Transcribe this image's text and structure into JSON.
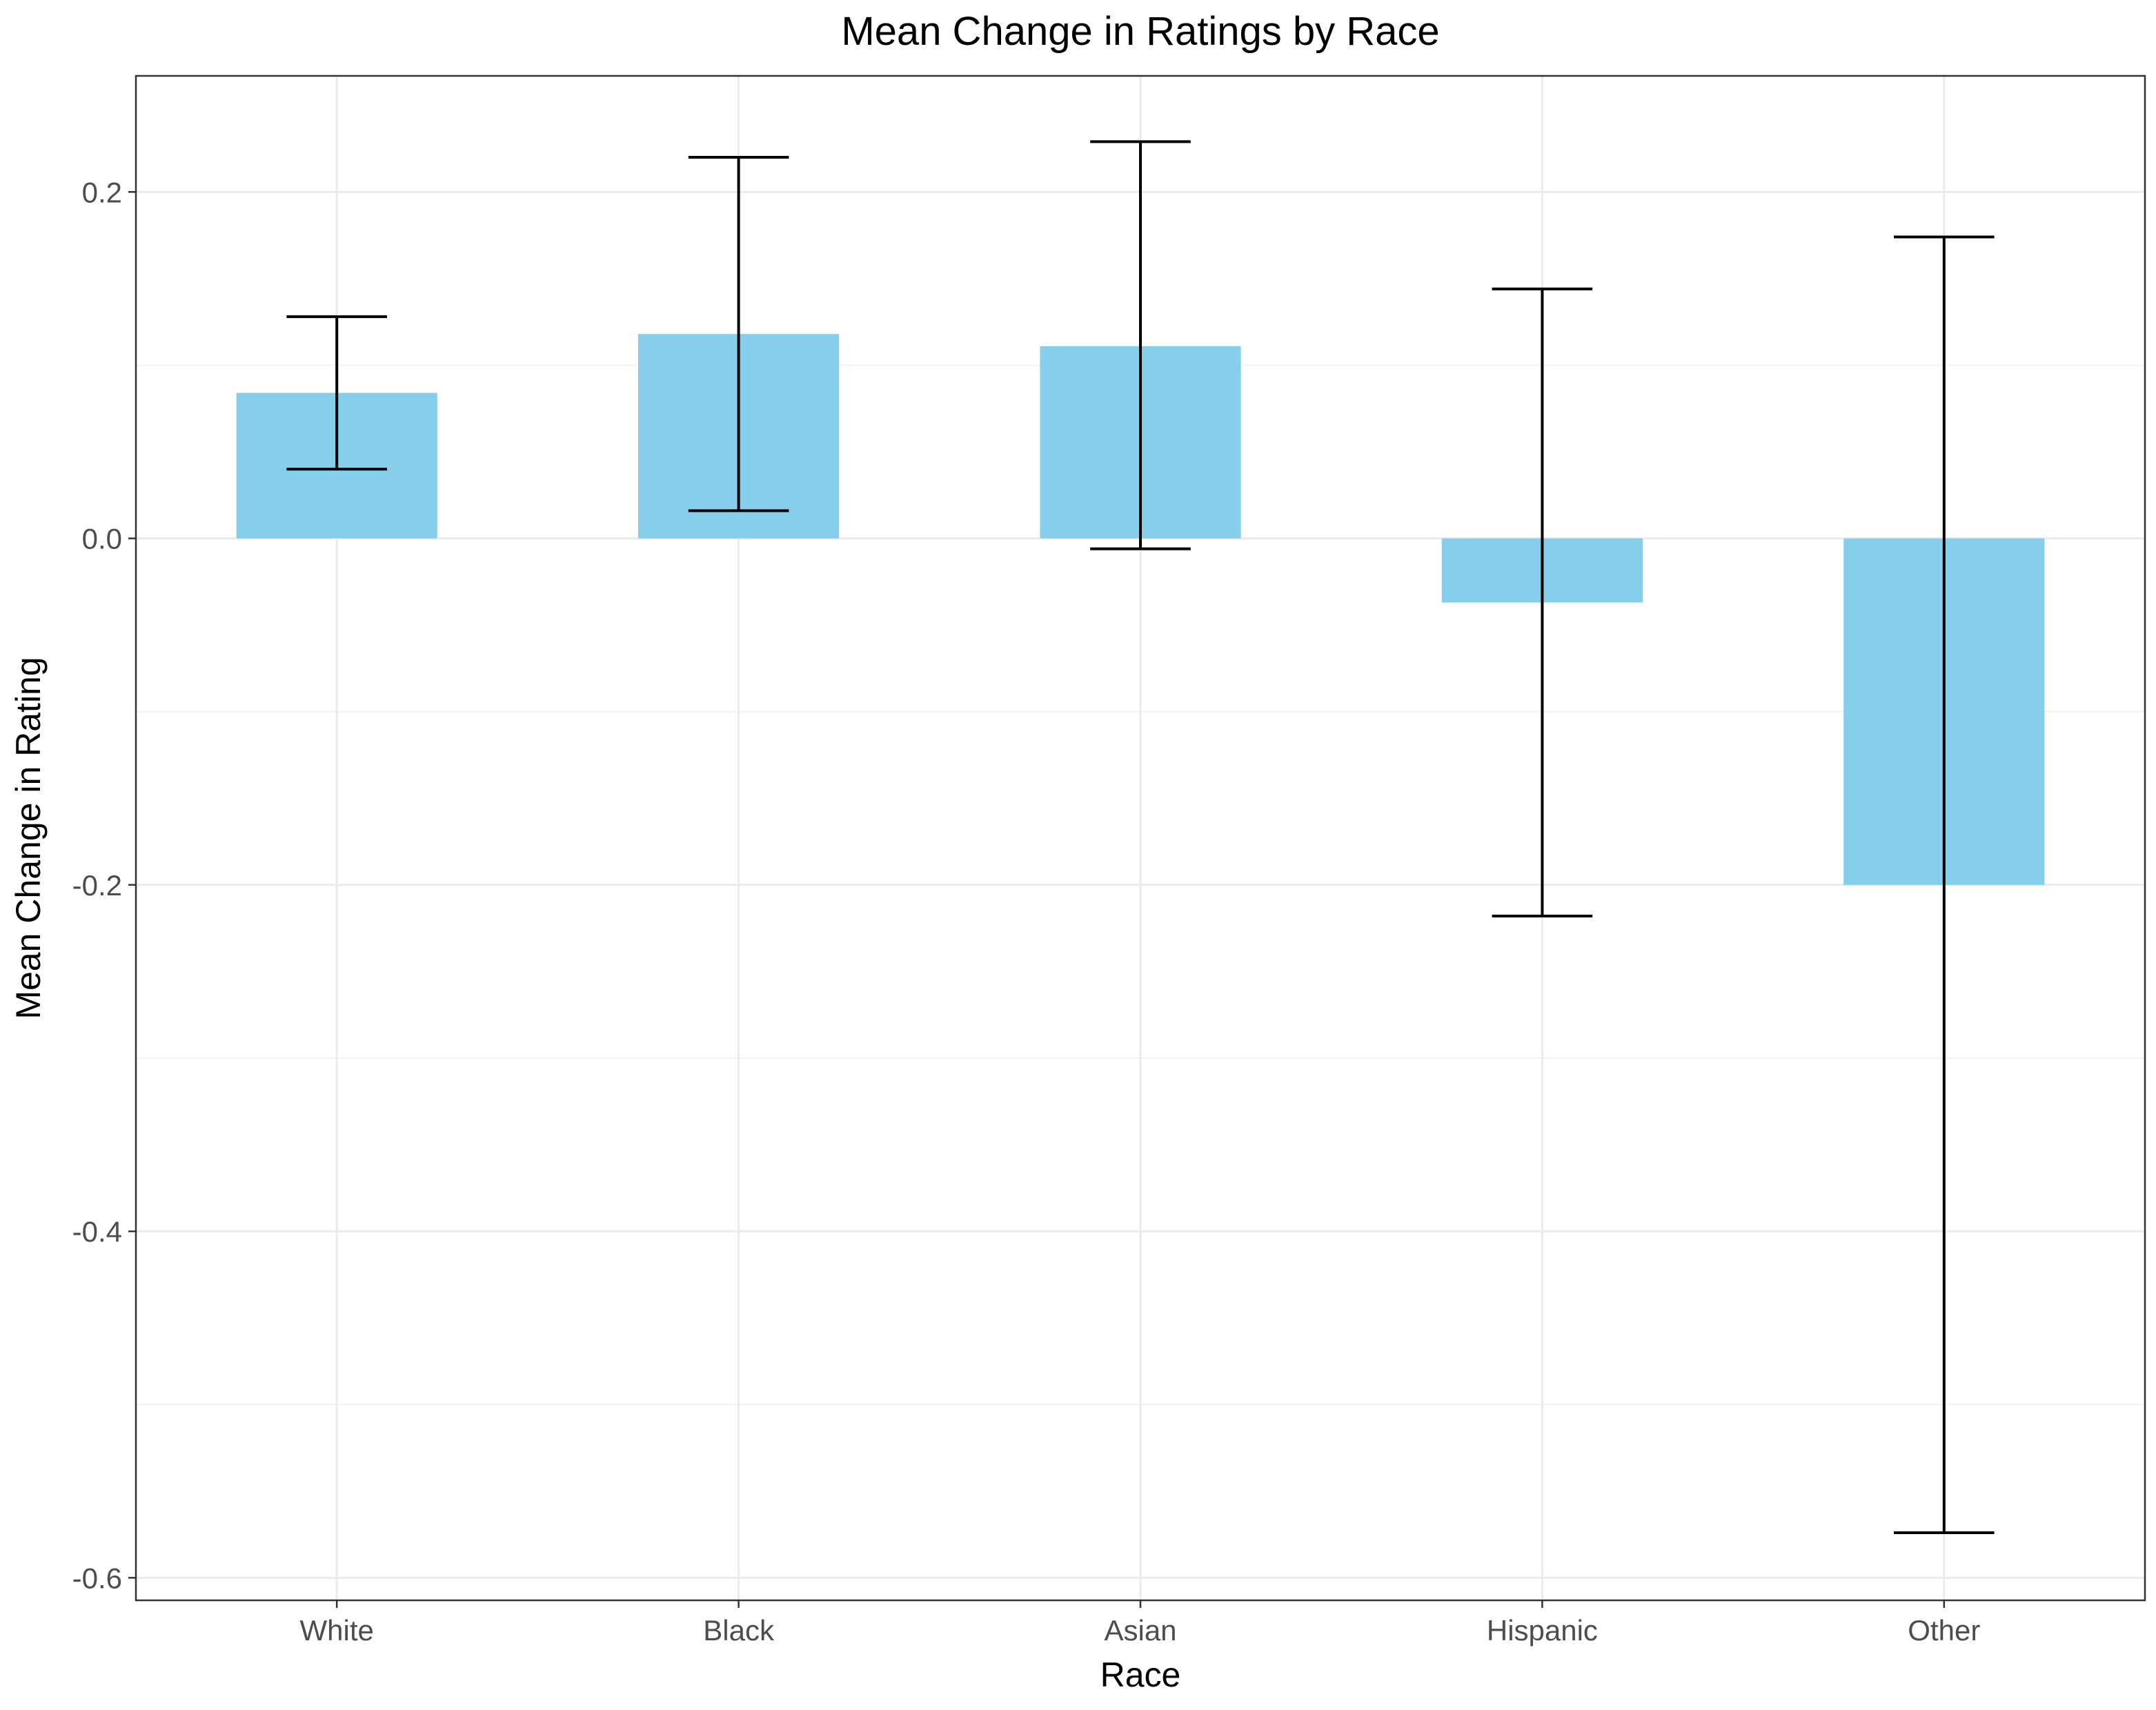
{
  "chart_data": {
    "type": "bar",
    "title": "Mean Change in Ratings by Race",
    "xlabel": "Race",
    "ylabel": "Mean Change in Rating",
    "categories": [
      "White",
      "Black",
      "Asian",
      "Hispanic",
      "Other"
    ],
    "values": [
      0.084,
      0.118,
      0.111,
      -0.037,
      -0.2
    ],
    "error_low": [
      0.04,
      0.016,
      -0.006,
      -0.218,
      -0.574
    ],
    "error_high": [
      0.128,
      0.22,
      0.229,
      0.144,
      0.174
    ],
    "ylim": [
      -0.613,
      0.267
    ],
    "yticks": [
      -0.6,
      -0.4,
      -0.2,
      0.0,
      0.2
    ],
    "ytick_labels": [
      "-0.6",
      "-0.4",
      "-0.2",
      "0.0",
      "0.2"
    ],
    "grid": true,
    "legend": "none",
    "bar_color": "#87CEEB",
    "errorbar_color": "#000000"
  }
}
